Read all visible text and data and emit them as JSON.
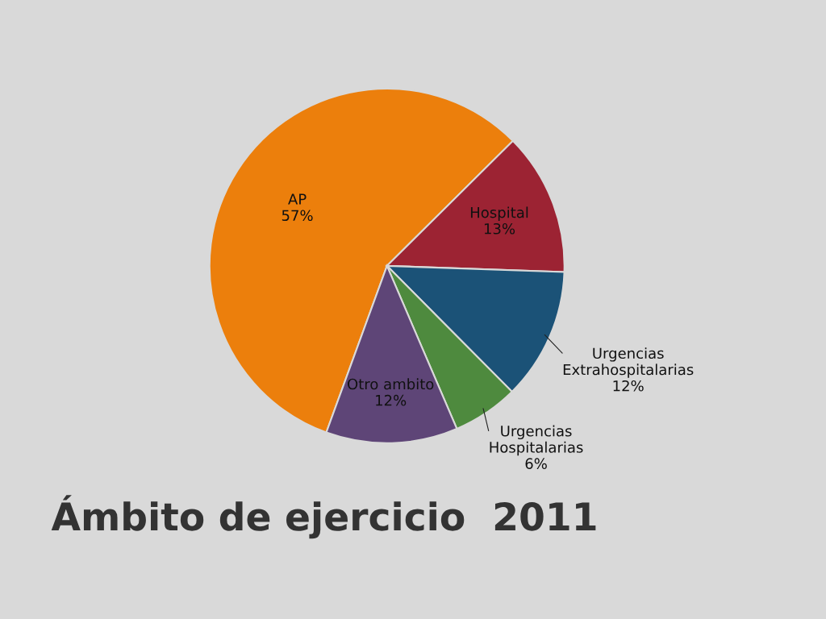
{
  "chart_data": {
    "type": "pie",
    "title": "Ámbito de ejercicio  2011",
    "categories": [
      "AP",
      "Hospital",
      "Urgencias\nExtrahospitalarias",
      "Urgencias\nHospitalarias",
      "Otro ambito"
    ],
    "values": [
      57,
      13,
      12,
      6,
      12
    ],
    "colors": [
      "#ec7f0c",
      "#9c2333",
      "#1b5277",
      "#4e8a3e",
      "#5e4577"
    ],
    "value_labels": [
      "57%",
      "13%",
      "12%",
      "6%",
      "12%"
    ]
  }
}
